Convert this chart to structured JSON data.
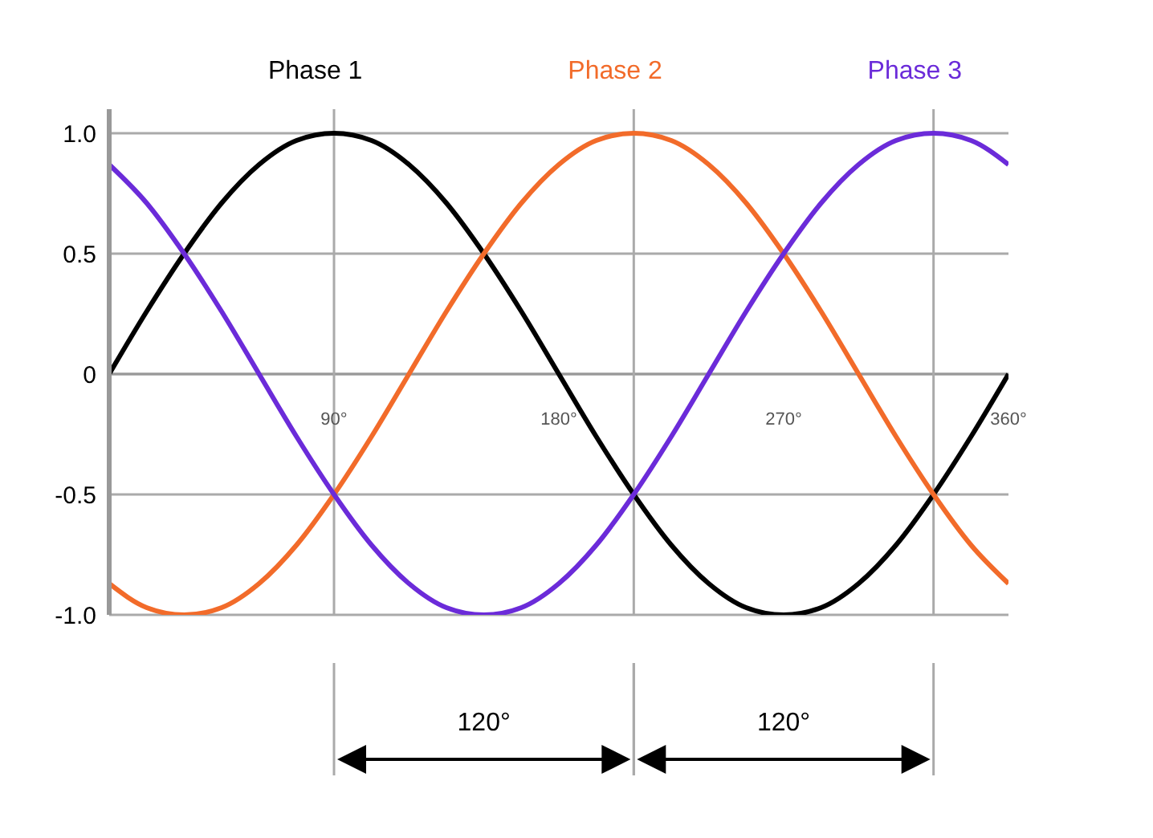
{
  "chart_data": {
    "type": "line",
    "x": [
      0,
      15,
      30,
      45,
      60,
      75,
      90,
      105,
      120,
      135,
      150,
      165,
      180,
      195,
      210,
      225,
      240,
      255,
      270,
      285,
      300,
      315,
      330,
      345,
      360
    ],
    "series": [
      {
        "name": "Phase 1",
        "color": "#000000",
        "values": [
          0,
          0.26,
          0.5,
          0.71,
          0.87,
          0.97,
          1,
          0.97,
          0.87,
          0.71,
          0.5,
          0.26,
          0,
          -0.26,
          -0.5,
          -0.71,
          -0.87,
          -0.97,
          -1,
          -0.97,
          -0.87,
          -0.71,
          -0.5,
          -0.26,
          0
        ]
      },
      {
        "name": "Phase 2",
        "color": "#f26b2a",
        "values": [
          -0.87,
          -0.97,
          -1,
          -0.97,
          -0.87,
          -0.71,
          -0.5,
          -0.26,
          0,
          0.26,
          0.5,
          0.71,
          0.87,
          0.97,
          1,
          0.97,
          0.87,
          0.71,
          0.5,
          0.26,
          0,
          -0.26,
          -0.5,
          -0.71,
          -0.87
        ]
      },
      {
        "name": "Phase 3",
        "color": "#6b2bd9",
        "values": [
          0.87,
          0.71,
          0.5,
          0.26,
          0,
          -0.26,
          -0.5,
          -0.71,
          -0.87,
          -0.97,
          -1,
          -0.97,
          -0.87,
          -0.71,
          -0.5,
          -0.26,
          0,
          0.26,
          0.5,
          0.71,
          0.87,
          0.97,
          1,
          0.97,
          0.87
        ]
      }
    ],
    "xlim": [
      0,
      360
    ],
    "xticks": [
      {
        "value": 90,
        "label": "90°"
      },
      {
        "value": 180,
        "label": "180°"
      },
      {
        "value": 270,
        "label": "270°"
      },
      {
        "value": 360,
        "label": "360°"
      }
    ],
    "ylim": [
      -1,
      1.1
    ],
    "yticks": [
      {
        "value": 1,
        "label": "1.0"
      },
      {
        "value": 0.5,
        "label": "0.5"
      },
      {
        "value": 0,
        "label": "0"
      },
      {
        "value": -0.5,
        "label": "-0.5"
      },
      {
        "value": -1,
        "label": "-1.0"
      }
    ],
    "grid": "y",
    "ref_lines": [
      {
        "axis": "x",
        "value": 90,
        "color": "#aaaaaa"
      },
      {
        "axis": "x",
        "value": 210,
        "color": "#aaaaaa"
      },
      {
        "axis": "x",
        "value": 330,
        "color": "#aaaaaa"
      }
    ],
    "annotations": [
      "120°",
      "120°"
    ],
    "legend": "top",
    "marker": "none",
    "line_style": "solid"
  }
}
